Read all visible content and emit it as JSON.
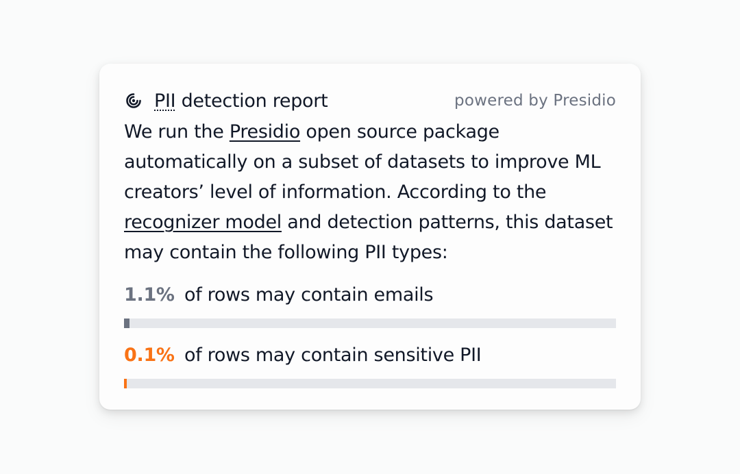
{
  "header": {
    "icon": "presidio-logo-icon",
    "title_abbr": "PII",
    "title_rest": " detection report",
    "powered_by": "powered by Presidio"
  },
  "description": {
    "part1": "We run the ",
    "link_presidio": "Presidio",
    "part2": " open source package automatically on a subset of datasets to improve ML creators’ level of information. According to the ",
    "link_recognizer": "recognizer model",
    "part3": " and detection patterns, this dataset may contain the following PII types:"
  },
  "metrics": [
    {
      "percent_label": "1.1%",
      "text": " of rows may contain emails",
      "fraction": 0.011,
      "color": "#6b7280"
    },
    {
      "percent_label": "0.1%",
      "text": " of rows may contain sensitive PII",
      "fraction": 0.001,
      "color": "#f97316"
    }
  ]
}
